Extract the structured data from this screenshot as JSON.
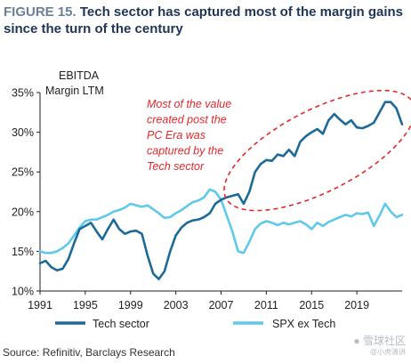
{
  "title": {
    "figure_label": "FIGURE 15.",
    "text": "Tech sector has captured most of the margin gains since the turn of the century"
  },
  "chart_data": {
    "type": "line",
    "ylabel_line1": "EBITDA",
    "ylabel_line2": "Margin LTM",
    "ylim": [
      10,
      35
    ],
    "xlim": [
      1991,
      2023
    ],
    "y_ticks": [
      "35%",
      "30%",
      "25%",
      "20%",
      "15%",
      "10%"
    ],
    "y_tick_values": [
      35,
      30,
      25,
      20,
      15,
      10
    ],
    "x_ticks": [
      "1991",
      "1995",
      "1999",
      "2003",
      "2007",
      "2011",
      "2015",
      "2019"
    ],
    "x_tick_values": [
      1991,
      1995,
      1999,
      2003,
      2007,
      2011,
      2015,
      2019
    ],
    "series": [
      {
        "name": "Tech sector",
        "color": "#1c6a99",
        "points": [
          [
            1991.0,
            13.5
          ],
          [
            1991.5,
            13.8
          ],
          [
            1992.0,
            13.0
          ],
          [
            1992.5,
            12.6
          ],
          [
            1993.0,
            12.8
          ],
          [
            1993.5,
            14.0
          ],
          [
            1994.0,
            16.0
          ],
          [
            1994.5,
            17.8
          ],
          [
            1995.0,
            18.2
          ],
          [
            1995.5,
            18.6
          ],
          [
            1996.0,
            17.5
          ],
          [
            1996.5,
            16.5
          ],
          [
            1997.0,
            17.8
          ],
          [
            1997.5,
            19.0
          ],
          [
            1998.0,
            17.8
          ],
          [
            1998.5,
            17.2
          ],
          [
            1999.0,
            17.5
          ],
          [
            1999.5,
            17.6
          ],
          [
            2000.0,
            17.2
          ],
          [
            2000.5,
            14.5
          ],
          [
            2001.0,
            12.2
          ],
          [
            2001.5,
            11.5
          ],
          [
            2002.0,
            12.5
          ],
          [
            2002.5,
            15.0
          ],
          [
            2003.0,
            17.0
          ],
          [
            2003.5,
            18.0
          ],
          [
            2004.0,
            18.6
          ],
          [
            2004.5,
            18.9
          ],
          [
            2005.0,
            19.0
          ],
          [
            2005.5,
            19.3
          ],
          [
            2006.0,
            19.8
          ],
          [
            2006.5,
            21.0
          ],
          [
            2007.0,
            21.5
          ],
          [
            2007.5,
            21.8
          ],
          [
            2008.0,
            22.0
          ],
          [
            2008.5,
            22.2
          ],
          [
            2009.0,
            21.0
          ],
          [
            2009.5,
            22.5
          ],
          [
            2010.0,
            25.0
          ],
          [
            2010.5,
            26.0
          ],
          [
            2011.0,
            26.5
          ],
          [
            2011.5,
            26.4
          ],
          [
            2012.0,
            27.2
          ],
          [
            2012.5,
            27.0
          ],
          [
            2013.0,
            27.8
          ],
          [
            2013.5,
            27.0
          ],
          [
            2014.0,
            28.8
          ],
          [
            2014.5,
            29.5
          ],
          [
            2015.0,
            30.0
          ],
          [
            2015.5,
            30.4
          ],
          [
            2016.0,
            29.8
          ],
          [
            2016.5,
            31.5
          ],
          [
            2017.0,
            32.3
          ],
          [
            2017.5,
            31.6
          ],
          [
            2018.0,
            31.0
          ],
          [
            2018.5,
            31.5
          ],
          [
            2019.0,
            30.6
          ],
          [
            2019.5,
            30.5
          ],
          [
            2020.0,
            30.8
          ],
          [
            2020.5,
            31.2
          ],
          [
            2021.0,
            32.5
          ],
          [
            2021.5,
            33.8
          ],
          [
            2022.0,
            33.8
          ],
          [
            2022.5,
            33.0
          ],
          [
            2023.0,
            31.0
          ]
        ]
      },
      {
        "name": "SPX ex Tech",
        "color": "#5fc9ea",
        "points": [
          [
            1991.0,
            15.0
          ],
          [
            1991.5,
            14.8
          ],
          [
            1992.0,
            14.8
          ],
          [
            1992.5,
            15.0
          ],
          [
            1993.0,
            15.4
          ],
          [
            1993.5,
            16.0
          ],
          [
            1994.0,
            17.0
          ],
          [
            1994.5,
            18.0
          ],
          [
            1995.0,
            18.8
          ],
          [
            1995.5,
            19.0
          ],
          [
            1996.0,
            19.0
          ],
          [
            1996.5,
            19.3
          ],
          [
            1997.0,
            19.6
          ],
          [
            1997.5,
            20.0
          ],
          [
            1998.0,
            20.2
          ],
          [
            1998.5,
            20.5
          ],
          [
            1999.0,
            21.0
          ],
          [
            1999.5,
            20.8
          ],
          [
            2000.0,
            20.6
          ],
          [
            2000.5,
            20.8
          ],
          [
            2001.0,
            20.3
          ],
          [
            2001.5,
            19.8
          ],
          [
            2002.0,
            19.2
          ],
          [
            2002.5,
            19.3
          ],
          [
            2003.0,
            19.8
          ],
          [
            2003.5,
            20.2
          ],
          [
            2004.0,
            20.7
          ],
          [
            2004.5,
            21.2
          ],
          [
            2005.0,
            21.4
          ],
          [
            2005.5,
            21.8
          ],
          [
            2006.0,
            22.8
          ],
          [
            2006.5,
            22.5
          ],
          [
            2007.0,
            21.5
          ],
          [
            2007.5,
            19.5
          ],
          [
            2008.0,
            17.5
          ],
          [
            2008.5,
            15.0
          ],
          [
            2009.0,
            14.8
          ],
          [
            2009.5,
            16.2
          ],
          [
            2010.0,
            17.8
          ],
          [
            2010.5,
            18.5
          ],
          [
            2011.0,
            18.8
          ],
          [
            2011.5,
            18.6
          ],
          [
            2012.0,
            18.3
          ],
          [
            2012.5,
            18.6
          ],
          [
            2013.0,
            18.4
          ],
          [
            2013.5,
            18.6
          ],
          [
            2014.0,
            18.8
          ],
          [
            2014.5,
            18.4
          ],
          [
            2015.0,
            17.8
          ],
          [
            2015.5,
            18.6
          ],
          [
            2016.0,
            18.2
          ],
          [
            2016.5,
            18.7
          ],
          [
            2017.0,
            19.0
          ],
          [
            2017.5,
            19.3
          ],
          [
            2018.0,
            19.6
          ],
          [
            2018.5,
            19.4
          ],
          [
            2019.0,
            19.8
          ],
          [
            2019.5,
            19.7
          ],
          [
            2020.0,
            19.9
          ],
          [
            2020.5,
            18.2
          ],
          [
            2021.0,
            19.5
          ],
          [
            2021.5,
            21.0
          ],
          [
            2022.0,
            20.0
          ],
          [
            2022.5,
            19.3
          ],
          [
            2023.0,
            19.6
          ]
        ]
      }
    ],
    "annotation": {
      "lines": [
        "Most of the value",
        "created post the",
        "PC Era was",
        "captured by the",
        "Tech sector"
      ],
      "color": "#e0282d"
    },
    "legend": {
      "position": "bottom"
    },
    "grid": false
  },
  "source": "Source: Refinitiv, Barclays Research"
}
